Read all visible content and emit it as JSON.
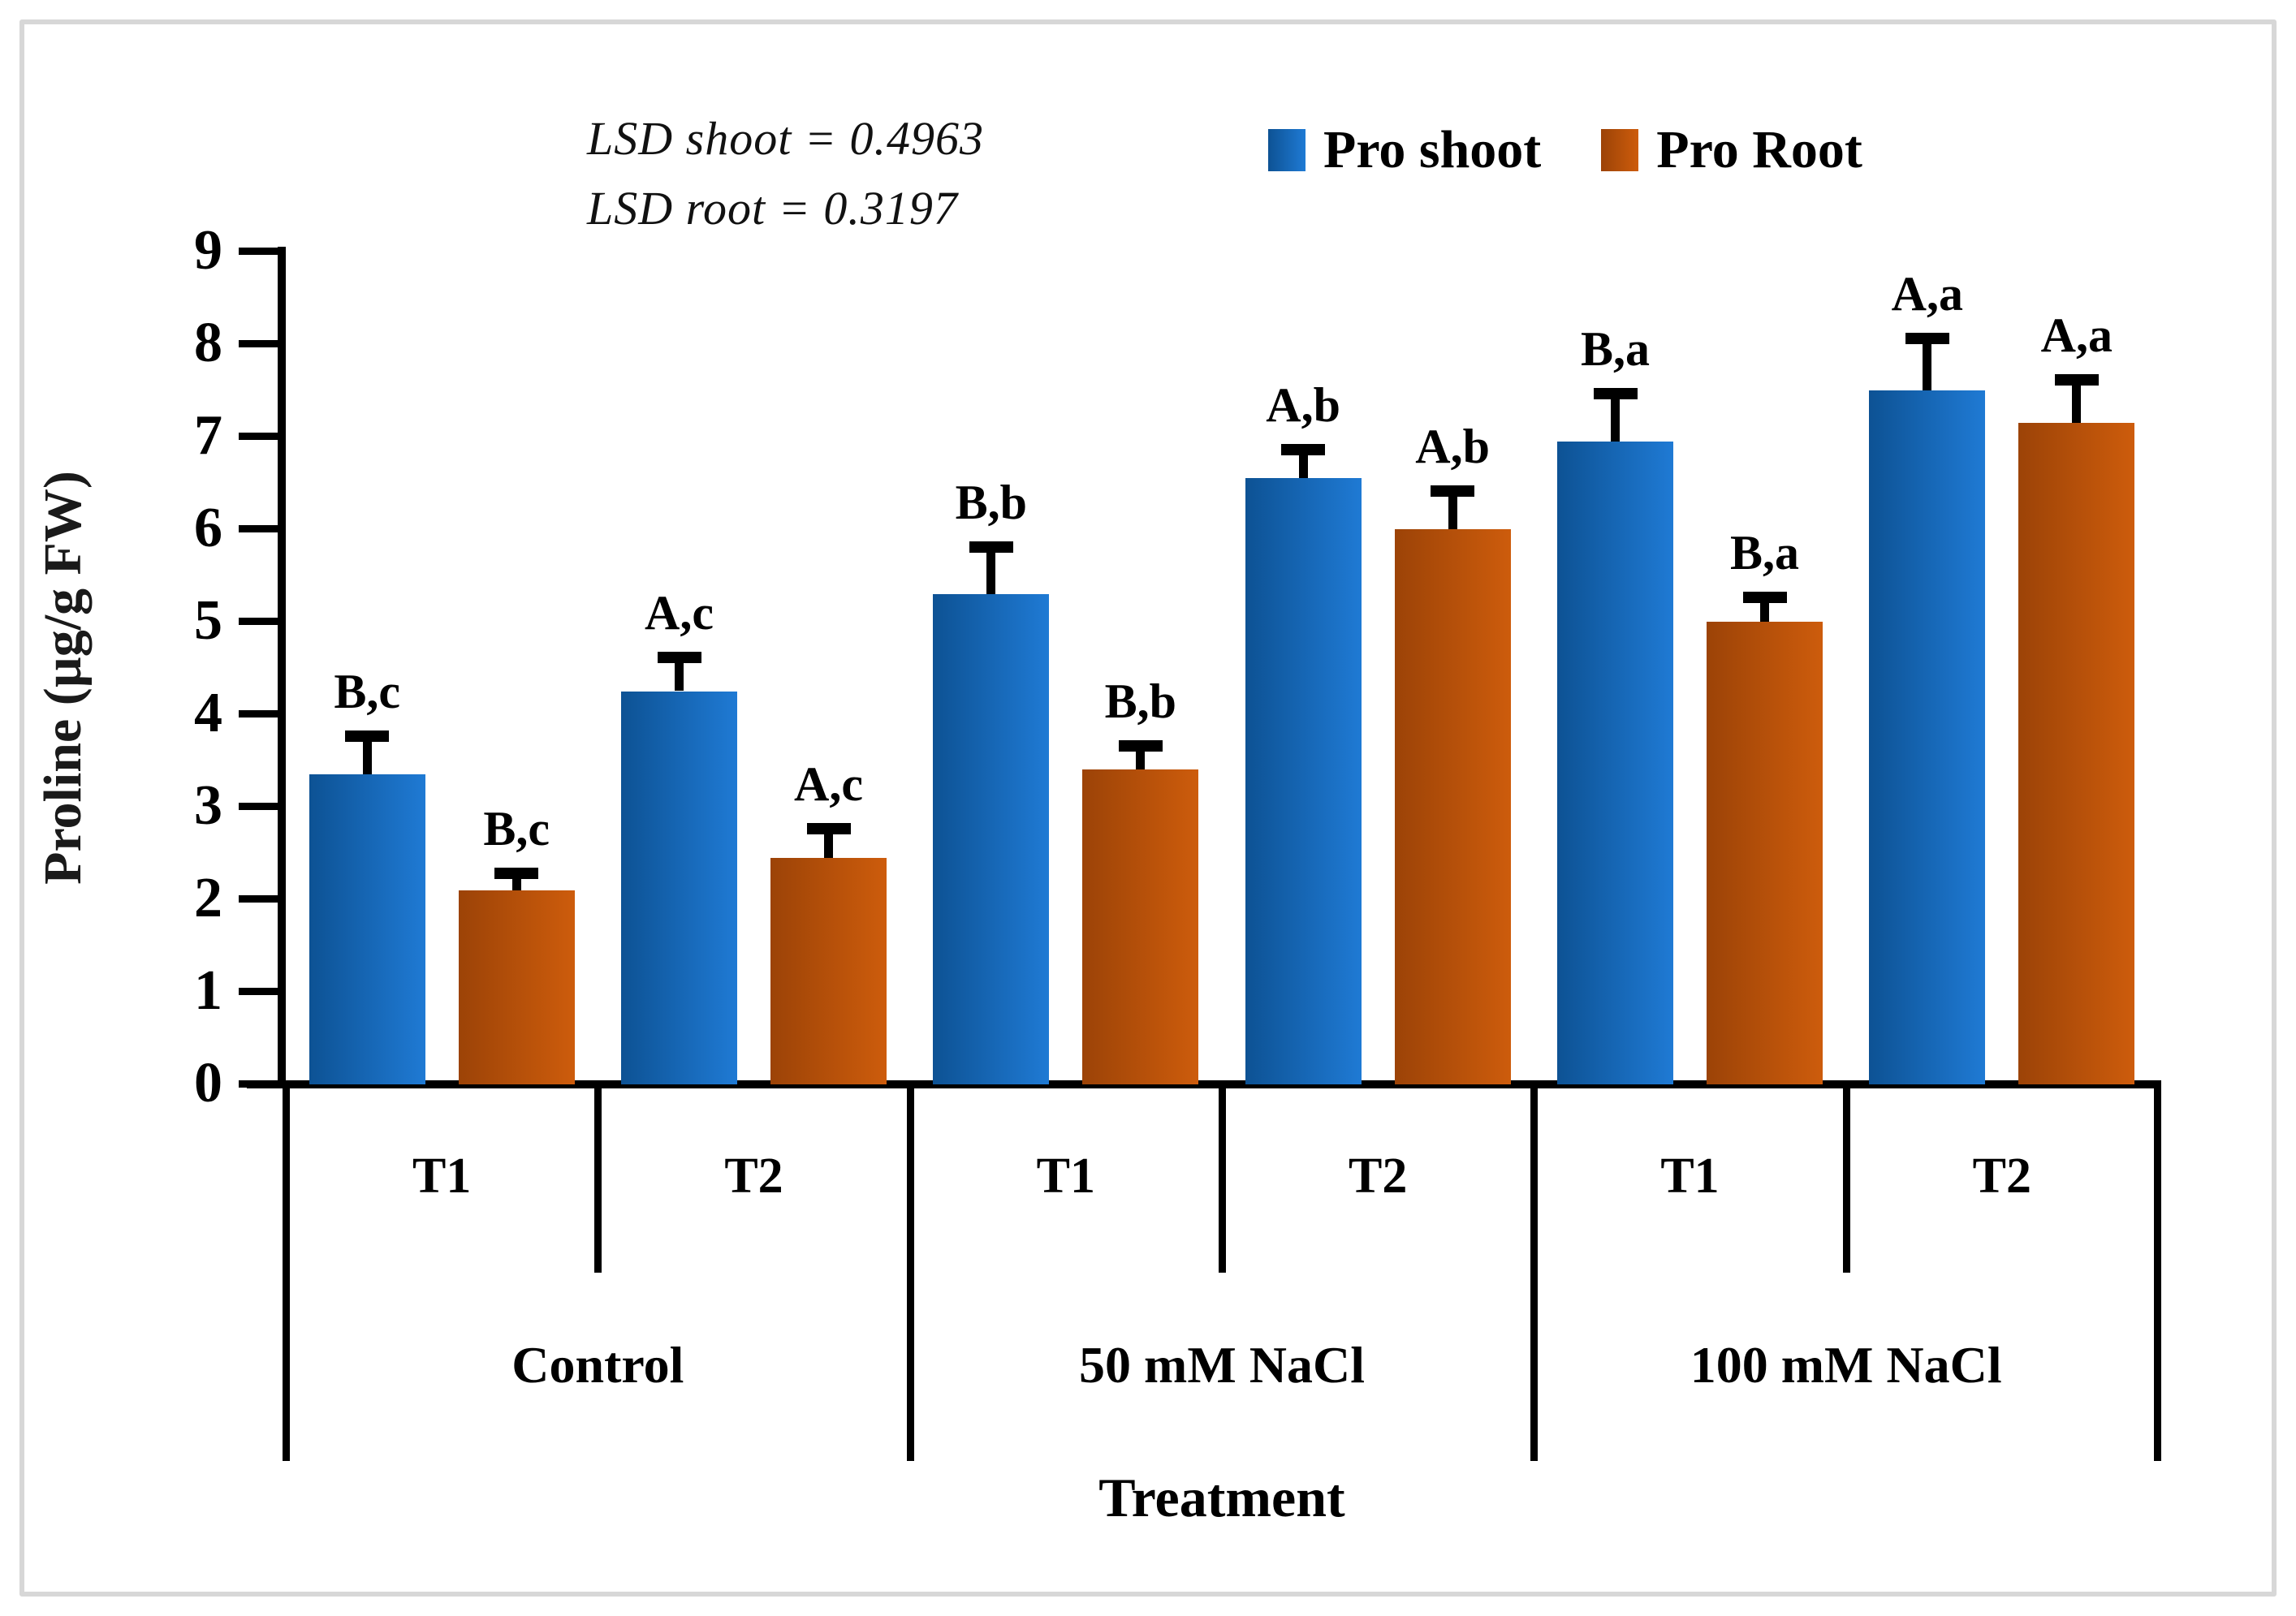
{
  "figure": {
    "background": "#ffffff",
    "border_color": "#d7d7d7"
  },
  "annotations": {
    "lsd_line1": "LSD shoot  = 0.4963",
    "lsd_line2": "LSD root = 0.3197"
  },
  "legend": [
    {
      "label": "Pro shoot",
      "icon": "blue-square-icon",
      "color_start": "#0d5294",
      "color_end": "#1f7ad4"
    },
    {
      "label": "Pro Root",
      "icon": "orange-square-icon",
      "color_start": "#9c4307",
      "color_end": "#cd5c0c"
    }
  ],
  "chart_data": {
    "type": "bar",
    "title": "",
    "ylabel": "Proline (µg/g FW)",
    "xlabel": "Treatment",
    "ylim": [
      0,
      9
    ],
    "yticks": [
      0,
      1,
      2,
      3,
      4,
      5,
      6,
      7,
      8,
      9
    ],
    "grid": false,
    "legend_position": "top-right",
    "axis_color": "#000000",
    "group_labels": [
      "Control",
      "50 mM NaCl",
      "100 mM NaCl"
    ],
    "sub_labels": [
      "T1",
      "T2"
    ],
    "categories": [
      "Control T1",
      "Control T2",
      "50 mM NaCl T1",
      "50 mM NaCl T2",
      "100 mM NaCl T1",
      "100 mM NaCl T2"
    ],
    "series": [
      {
        "name": "Pro shoot",
        "color_start": "#0d5294",
        "color_end": "#1f7ad4",
        "values": [
          3.35,
          4.25,
          5.3,
          6.55,
          6.95,
          7.5
        ],
        "errors": [
          0.35,
          0.3,
          0.45,
          0.25,
          0.45,
          0.5
        ],
        "sig_labels": [
          "B,c",
          "A,c",
          "B,b",
          "A,b",
          "B,a",
          "A,a"
        ]
      },
      {
        "name": "Pro Root",
        "color_start": "#9c4307",
        "color_end": "#cd5c0c",
        "values": [
          2.1,
          2.45,
          3.4,
          6.0,
          5.0,
          7.15
        ],
        "errors": [
          0.12,
          0.25,
          0.2,
          0.35,
          0.2,
          0.4
        ],
        "sig_labels": [
          "B,c",
          "A,c",
          "B,b",
          "A,b",
          "B,a",
          "A,a"
        ]
      }
    ]
  }
}
